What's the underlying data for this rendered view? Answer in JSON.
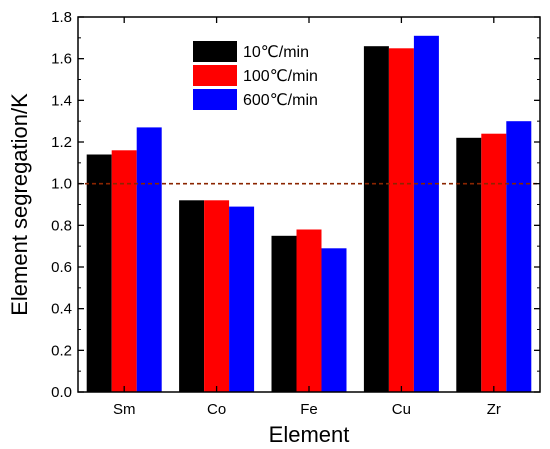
{
  "chart_data": {
    "type": "bar",
    "xlabel": "Element",
    "ylabel": "Element segregation/K",
    "categories": [
      "Sm",
      "Co",
      "Fe",
      "Cu",
      "Zr"
    ],
    "series": [
      {
        "name": "10℃/min",
        "color": "#000000",
        "values": [
          1.14,
          0.92,
          0.75,
          1.66,
          1.22
        ]
      },
      {
        "name": "100℃/min",
        "color": "#ff0000",
        "values": [
          1.16,
          0.92,
          0.78,
          1.65,
          1.24
        ]
      },
      {
        "name": "600℃/min",
        "color": "#0000ff",
        "values": [
          1.27,
          0.89,
          0.69,
          1.71,
          1.3
        ]
      }
    ],
    "ylim": [
      0.0,
      1.8
    ],
    "yticks": [
      "0.0",
      "0.2",
      "0.4",
      "0.6",
      "0.8",
      "1.0",
      "1.2",
      "1.4",
      "1.6",
      "1.8"
    ],
    "reference_line": {
      "y": 1.0,
      "color": "#8b2500",
      "style": "dashed"
    },
    "legend_position": "top-center",
    "grid": false
  }
}
